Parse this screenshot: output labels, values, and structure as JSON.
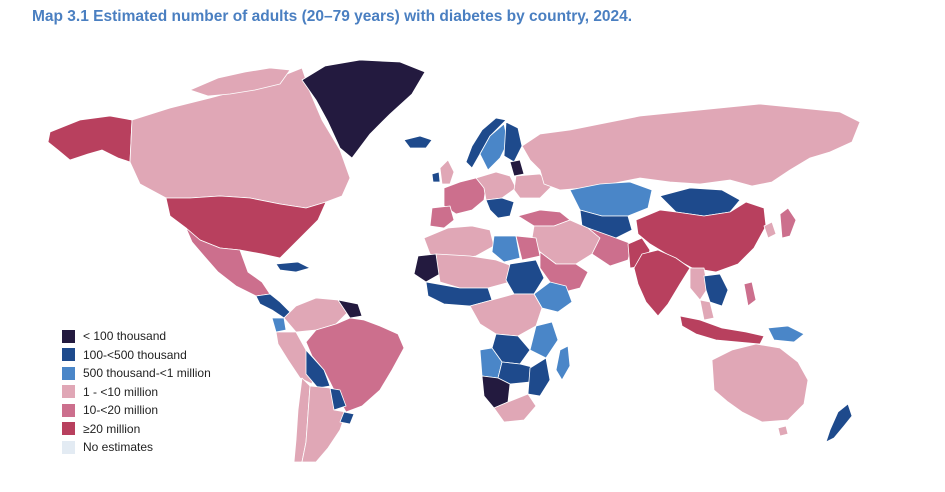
{
  "title": "Map 3.1 Estimated number of adults (20–79 years) with diabetes by country, 2024.",
  "legend": [
    {
      "label": "< 100 thousand",
      "color": "#231a3f"
    },
    {
      "label": "100-<500 thousand",
      "color": "#1e4a8c"
    },
    {
      "label": "500 thousand-<1 million",
      "color": "#4a86c8"
    },
    {
      "label": "1 - <10 million",
      "color": "#e0a7b6"
    },
    {
      "label": "10-<20 million",
      "color": "#cc6f8d"
    },
    {
      "label": "≥20 million",
      "color": "#b8405e"
    },
    {
      "label": "No estimates",
      "color": "#e3ebf3"
    }
  ],
  "colors": {
    "lt100k": "#231a3f",
    "k100_500": "#1e4a8c",
    "k500_1m": "#4a86c8",
    "m1_10": "#e0a7b6",
    "m10_20": "#cc6f8d",
    "m20plus": "#b8405e",
    "none": "#e3ebf3",
    "border": "#ffffff",
    "title": "#4a7fc1"
  }
}
